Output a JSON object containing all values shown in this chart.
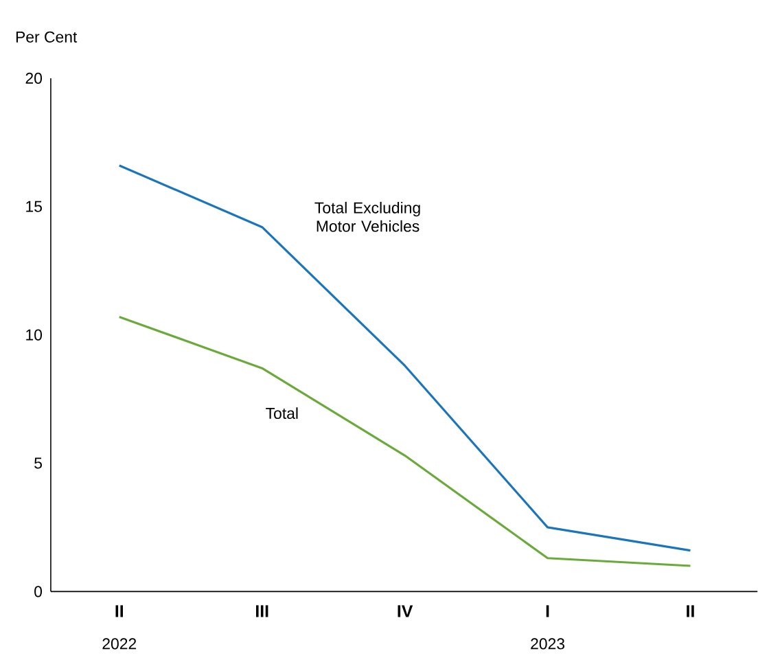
{
  "chart_data": {
    "type": "line",
    "ylabel": "Per Cent",
    "categories": [
      "II",
      "III",
      "IV",
      "I",
      "II"
    ],
    "series": [
      {
        "name": "Total Excluding Motor Vehicles",
        "color": "#1a75bc",
        "values": [
          16.6,
          14.2,
          8.8,
          2.5,
          1.6
        ]
      },
      {
        "name": "Total",
        "color": "#6aaa3a",
        "values": [
          10.7,
          8.7,
          5.3,
          1.3,
          1.0
        ]
      }
    ],
    "annotations": [
      "2022",
      "2023"
    ],
    "ylim": [
      0,
      20
    ],
    "yticks": [
      0,
      5,
      10,
      15,
      20
    ],
    "grid": false,
    "legend": false,
    "marker": "none",
    "line_style": "solid"
  }
}
